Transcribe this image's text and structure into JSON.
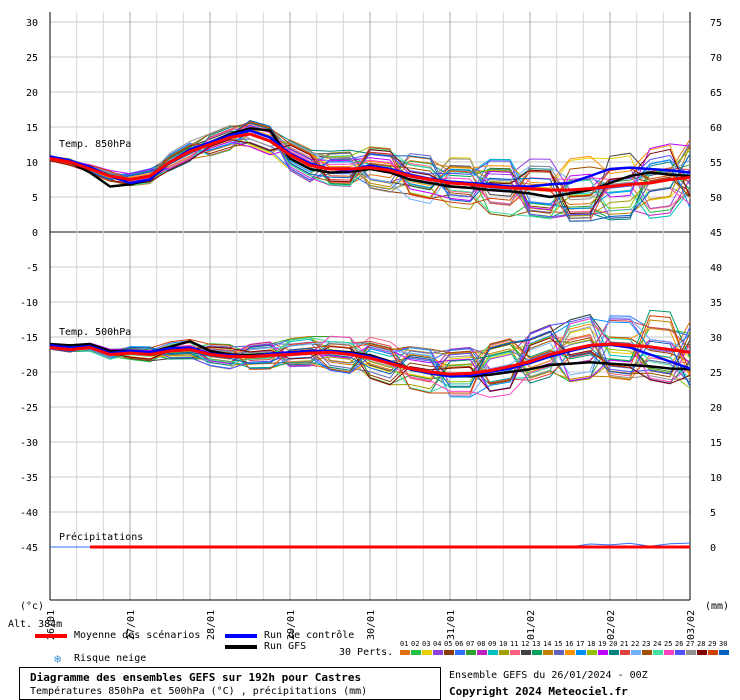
{
  "chart_data": {
    "type": "line",
    "x_labels": [
      "26/01",
      "27/01",
      "28/01",
      "29/01",
      "30/01",
      "31/01",
      "01/02",
      "02/02",
      "03/02"
    ],
    "y_left_ticks": [
      30,
      25,
      20,
      15,
      10,
      5,
      0,
      -5,
      -10,
      -15,
      -20,
      -25,
      -30,
      -35,
      -40,
      -45
    ],
    "y_right_ticks": [
      75,
      70,
      65,
      60,
      55,
      50,
      45,
      40,
      35,
      30,
      25,
      20,
      15,
      10,
      5,
      0
    ],
    "unit_left": "(°c)",
    "unit_right": "(mm)",
    "altitude_label": "Alt. 384m",
    "panel_labels": [
      "Temp. 850hPa",
      "Temp. 500hPa",
      "Précipitations"
    ],
    "x_hours": [
      0,
      6,
      12,
      18,
      24,
      30,
      36,
      42,
      48,
      54,
      60,
      66,
      72,
      78,
      84,
      90,
      96,
      102,
      108,
      114,
      120,
      126,
      132,
      138,
      144,
      150,
      156,
      162,
      168,
      174,
      180,
      186,
      192
    ],
    "series": [
      {
        "name": "Moyenne des scénarios",
        "panel": "850",
        "color": "#ff0000",
        "values": [
          10.5,
          10,
          9,
          8,
          7.5,
          8,
          10,
          11.5,
          12.5,
          13.5,
          14,
          13,
          11,
          9.5,
          9,
          9,
          9.2,
          8.8,
          8,
          7.5,
          7,
          6.8,
          6.5,
          6.3,
          6.2,
          6,
          6,
          6.2,
          6.5,
          6.8,
          7,
          7.5,
          7.8
        ]
      },
      {
        "name": "Run de contrôle",
        "panel": "850",
        "color": "#0000ff",
        "values": [
          10.8,
          10.2,
          9.3,
          8,
          7,
          7.5,
          10,
          11.8,
          12.8,
          13.8,
          14.5,
          13.5,
          11.2,
          9.8,
          9,
          8.8,
          9.5,
          9,
          8.2,
          7.6,
          7.2,
          7,
          6.8,
          6.5,
          6.5,
          6.8,
          7,
          8,
          9,
          9.2,
          9,
          8.8,
          8.5
        ]
      },
      {
        "name": "Run GFS",
        "panel": "850",
        "color": "#000000",
        "values": [
          10.6,
          10,
          8.5,
          6.5,
          6.8,
          7.5,
          10,
          11.5,
          12.8,
          14,
          14.8,
          14.5,
          10.5,
          9,
          8.5,
          8.6,
          9,
          8.5,
          7.5,
          7,
          6.5,
          6.3,
          6,
          5.8,
          5.5,
          5,
          5.5,
          6,
          7,
          8,
          8.5,
          8.2,
          8
        ]
      },
      {
        "name": "Moyenne des scénarios",
        "panel": "500",
        "color": "#ff0000",
        "values": [
          -16.5,
          -16.8,
          -16.5,
          -17.5,
          -17.3,
          -17.5,
          -17,
          -16.8,
          -17.5,
          -17.8,
          -17.8,
          -17.6,
          -17.5,
          -17.3,
          -17.2,
          -17.5,
          -18,
          -18.8,
          -19.5,
          -20,
          -20.3,
          -20.2,
          -19.8,
          -19.2,
          -18.5,
          -17.5,
          -16.8,
          -16.2,
          -16,
          -16.2,
          -16.4,
          -16.8,
          -17.2
        ]
      },
      {
        "name": "Run de contrôle",
        "panel": "500",
        "color": "#0000ff",
        "values": [
          -16.2,
          -16.5,
          -16.3,
          -17.3,
          -17,
          -17.2,
          -16.6,
          -16.5,
          -17.4,
          -17.6,
          -17.8,
          -17.4,
          -17.2,
          -17,
          -17,
          -17.3,
          -17.8,
          -18.6,
          -19.6,
          -20.2,
          -20.6,
          -20.5,
          -20,
          -19.5,
          -18.7,
          -17.8,
          -17,
          -16.3,
          -16.1,
          -16.5,
          -17.5,
          -18.5,
          -19.5
        ]
      },
      {
        "name": "Run GFS",
        "panel": "500",
        "color": "#000000",
        "values": [
          -16,
          -16.2,
          -16,
          -17,
          -17,
          -17.2,
          -16.4,
          -15.6,
          -17,
          -17.5,
          -17.6,
          -17.4,
          -17.2,
          -17,
          -17,
          -17.2,
          -17.6,
          -18.5,
          -19.5,
          -20,
          -20.5,
          -20.6,
          -20.4,
          -20,
          -19.6,
          -19,
          -18.8,
          -18.6,
          -18.8,
          -19,
          -19.2,
          -19.5,
          -19.6
        ]
      },
      {
        "name": "Moyenne des scénarios",
        "panel": "precip",
        "color": "#ff0000",
        "values": [
          0,
          0,
          0,
          0,
          0,
          0,
          0,
          0,
          0,
          0,
          0,
          0,
          0,
          0,
          0,
          0,
          0,
          0,
          0,
          0,
          0,
          0,
          0,
          0,
          0,
          0,
          0,
          0,
          0,
          0,
          0,
          0,
          0
        ]
      }
    ],
    "xlabel": "",
    "ylabel": ""
  },
  "legend": {
    "mean": "Moyenne des scénarios",
    "control": "Run de contrôle",
    "gfs": "Run GFS",
    "snow": "Risque neige",
    "perts": "30 Perts.",
    "perts_numbers": [
      "01",
      "02",
      "03",
      "04",
      "05",
      "06",
      "07",
      "08",
      "09",
      "10",
      "11",
      "12",
      "13",
      "14",
      "15",
      "16",
      "17",
      "18",
      "19",
      "20",
      "21",
      "22",
      "23",
      "24",
      "25",
      "26",
      "27",
      "28",
      "29",
      "30"
    ],
    "perts_colors": [
      "#e07010",
      "#20c040",
      "#e8d000",
      "#9040e0",
      "#8a3a00",
      "#3070ff",
      "#30a030",
      "#c020c0",
      "#00c0c0",
      "#a0a000",
      "#ff6080",
      "#404040",
      "#00a060",
      "#c08000",
      "#6060c0",
      "#ff9000",
      "#0090ff",
      "#90c000",
      "#c000ff",
      "#008080",
      "#e04040",
      "#70b0ff",
      "#a05000",
      "#40e0a0",
      "#ff40c0",
      "#5050ff",
      "#909090",
      "#800000",
      "#d04000",
      "#0060c0"
    ]
  },
  "footer": {
    "title": "Diagramme des ensembles GEFS sur 192h pour Castres",
    "subtitle": "Températures 850hPa et 500hPa (°C) , précipitations (mm)",
    "run": "Ensemble GEFS du 26/01/2024 - 00Z",
    "copyright": "Copyright 2024 Meteociel.fr"
  }
}
